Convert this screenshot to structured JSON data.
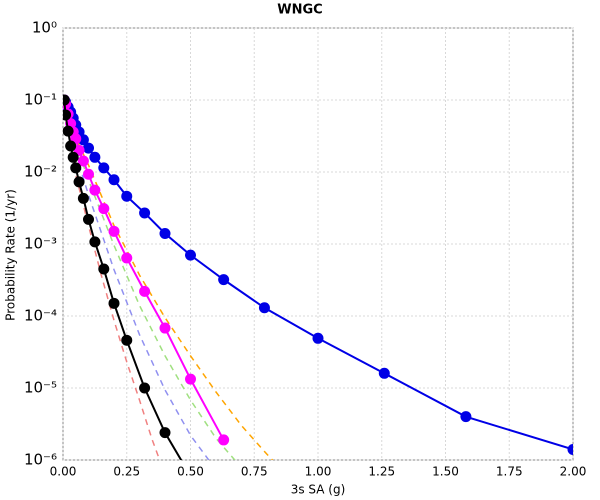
{
  "chart_data": {
    "type": "line",
    "title": "WNGC",
    "x_label": "3s SA (g)",
    "y_label": "Probability Rate (1/yr)",
    "xlim": [
      0,
      2
    ],
    "ylim": [
      1e-06,
      1
    ],
    "log_y": true,
    "grid": true,
    "xticks": [
      {
        "value": 0,
        "label": "0.00"
      },
      0.25,
      {
        "value": 0.5,
        "label": "0.50"
      },
      0.75,
      {
        "value": 1,
        "label": "1.00"
      },
      1.25,
      {
        "value": 1.5,
        "label": "1.50"
      },
      1.75,
      {
        "value": 2,
        "label": "2.00"
      }
    ],
    "yticks": [
      {
        "value": 1e-06,
        "label": "10⁻⁶"
      },
      {
        "value": 1e-05,
        "label": "10⁻⁵"
      },
      {
        "value": 0.0001,
        "label": "10⁻⁴"
      },
      {
        "value": 0.001,
        "label": "10⁻³"
      },
      {
        "value": 0.01,
        "label": "10⁻²"
      },
      {
        "value": 0.1,
        "label": "10⁻¹"
      },
      {
        "value": 1,
        "label": "10⁰"
      }
    ],
    "series": [
      {
        "color": "#ffa500",
        "dashed": true,
        "markers": false,
        "x": [
          0.005,
          0.05,
          0.1,
          0.2,
          0.3,
          0.4,
          0.5,
          0.6,
          0.7,
          0.8,
          0.9
        ],
        "values": [
          0.1,
          0.03,
          0.0125,
          0.0018,
          0.00037,
          9.5e-05,
          2.8e-05,
          8.8e-06,
          3e-06,
          1.2e-06,
          5e-07
        ]
      },
      {
        "color": "#a0e080",
        "dashed": true,
        "markers": false,
        "x": [
          0.005,
          0.05,
          0.1,
          0.2,
          0.3,
          0.4,
          0.5,
          0.6,
          0.7
        ],
        "values": [
          0.1,
          0.025,
          0.0077,
          0.00096,
          0.00014,
          2.8e-05,
          6.8e-06,
          2e-06,
          7.8e-07
        ]
      },
      {
        "color": "#9090f0",
        "dashed": true,
        "markers": false,
        "x": [
          0.005,
          0.05,
          0.1,
          0.2,
          0.3,
          0.4,
          0.5,
          0.6
        ],
        "values": [
          0.1,
          0.018,
          0.0048,
          0.00044,
          5.5e-05,
          9.4e-06,
          2.2e-06,
          7.3e-07
        ]
      },
      {
        "color": "#f08080",
        "dashed": true,
        "markers": false,
        "x": [
          0.005,
          0.025,
          0.05,
          0.1,
          0.15,
          0.2,
          0.25,
          0.3,
          0.35,
          0.4
        ],
        "values": [
          0.1,
          0.03,
          0.0091,
          0.0018,
          0.00037,
          8.7e-05,
          2.3e-05,
          6.8e-06,
          1.9e-06,
          6.3e-07
        ]
      },
      {
        "color": "#0000e6",
        "dashed": false,
        "markers": true,
        "x": [
          0.005,
          0.01,
          0.02,
          0.03,
          0.04,
          0.05,
          0.063,
          0.08,
          0.1,
          0.125,
          0.16,
          0.2,
          0.25,
          0.32,
          0.4,
          0.5,
          0.63,
          0.79,
          1.0,
          1.26,
          1.58,
          2.0
        ],
        "values": [
          0.1,
          0.094,
          0.08,
          0.068,
          0.056,
          0.045,
          0.036,
          0.028,
          0.0215,
          0.016,
          0.0114,
          0.0078,
          0.0046,
          0.0027,
          0.0014,
          0.0007,
          0.00032,
          0.00013,
          4.9e-05,
          1.6e-05,
          4e-06,
          1.4e-06
        ]
      },
      {
        "color": "#ff00ff",
        "dashed": false,
        "markers": true,
        "x": [
          0.005,
          0.01,
          0.02,
          0.03,
          0.04,
          0.05,
          0.063,
          0.08,
          0.1,
          0.125,
          0.16,
          0.2,
          0.25,
          0.32,
          0.4,
          0.5,
          0.63
        ],
        "values": [
          0.1,
          0.088,
          0.064,
          0.047,
          0.036,
          0.029,
          0.02,
          0.0142,
          0.0093,
          0.0056,
          0.0031,
          0.0015,
          0.00064,
          0.00022,
          6.8e-05,
          1.33e-05,
          1.9e-06
        ]
      },
      {
        "color": "#000000",
        "dashed": false,
        "markers": true,
        "x": [
          0.005,
          0.01,
          0.02,
          0.03,
          0.04,
          0.05,
          0.063,
          0.08,
          0.1,
          0.125,
          0.16,
          0.2,
          0.25,
          0.32,
          0.4,
          0.5
        ],
        "values": [
          0.1,
          0.062,
          0.037,
          0.023,
          0.016,
          0.0114,
          0.0073,
          0.0043,
          0.0022,
          0.00107,
          0.00045,
          0.00015,
          4.6e-05,
          1e-05,
          2.4e-06,
          6e-07
        ]
      }
    ]
  }
}
